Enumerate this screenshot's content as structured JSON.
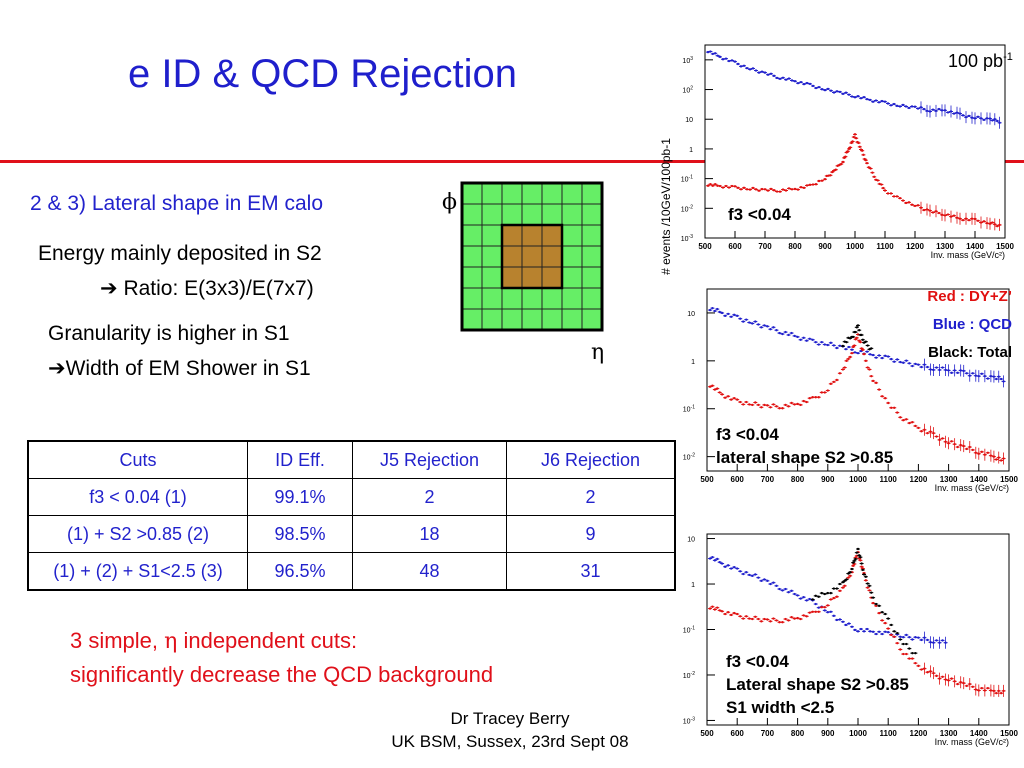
{
  "slide": {
    "title": "e ID & QCD Rejection",
    "section_heading": "2 & 3) Lateral shape in EM calo",
    "energy_line1": "Energy mainly deposited in S2",
    "energy_arrow": "➔",
    "energy_line2": "Ratio: E(3x3)/E(7x7)",
    "granularity_line1": "Granularity is higher in S1",
    "granularity_arrow": "➔",
    "granularity_line2": "Width of EM Shower in S1",
    "phi_symbol": "ϕ",
    "eta_symbol": "η",
    "conclusion_line1_a": "3 simple, ",
    "conclusion_line1_eta": "η",
    "conclusion_line1_b": " independent cuts:",
    "conclusion_line2": "significantly decrease the QCD background",
    "author_line1": "Dr Tracey Berry",
    "author_line2": "UK BSM, Sussex, 23rd Sept 08"
  },
  "calo_grid": {
    "size": 7,
    "highlight_start": 2,
    "highlight_size": 3,
    "cell_color": "#66ee66",
    "highlight_color": "#b8822e"
  },
  "table": {
    "headers": [
      "Cuts",
      "ID Eff.",
      "J5 Rejection",
      "J6 Rejection"
    ],
    "rows": [
      [
        "f3 < 0.04 (1)",
        "99.1%",
        "2",
        "2"
      ],
      [
        "(1) + S2 >0.85 (2)",
        "98.5%",
        "18",
        "9"
      ],
      [
        "(1) + (2) + S1<2.5 (3)",
        "96.5%",
        "48",
        "31"
      ]
    ]
  },
  "chart_data": [
    {
      "type": "scatter",
      "title": "",
      "lumi_label_base": "100 pb",
      "lumi_label_exp": "-1",
      "ylabel": "# events /10GeV/100pb-1",
      "xlabel": "Inv. mass (GeV/c²)",
      "xlim": [
        500,
        1500
      ],
      "ylim": [
        -3,
        3.5
      ],
      "log_y": true,
      "x_ticks": [
        "500",
        "600",
        "700",
        "800",
        "900",
        "1000",
        "1100",
        "1200",
        "1300",
        "1400",
        "1500"
      ],
      "y_ticks_base": "10",
      "y_ticks_exp": [
        "-3",
        "-2",
        "-1",
        "",
        "1",
        "2",
        "3"
      ],
      "annotation": [
        "f3 <0.04"
      ],
      "legend": [],
      "series": [
        {
          "color": "#2020cc",
          "x": [
            510,
            550,
            600,
            650,
            700,
            750,
            800,
            850,
            900,
            950,
            1000,
            1050,
            1100,
            1150,
            1200,
            1250,
            1300,
            1350,
            1400,
            1450,
            1490
          ],
          "y": [
            3.3,
            3.1,
            2.9,
            2.7,
            2.55,
            2.4,
            2.28,
            2.15,
            2.0,
            1.9,
            1.78,
            1.65,
            1.55,
            1.45,
            1.4,
            1.3,
            1.3,
            1.15,
            1.05,
            1.0,
            0.9
          ]
        },
        {
          "color": "#e01010",
          "x": [
            510,
            550,
            600,
            650,
            700,
            750,
            800,
            850,
            900,
            930,
            960,
            980,
            1000,
            1020,
            1040,
            1070,
            1100,
            1150,
            1200,
            1250,
            1300,
            1350,
            1400,
            1450,
            1490
          ],
          "y": [
            -1.2,
            -1.25,
            -1.3,
            -1.35,
            -1.38,
            -1.4,
            -1.35,
            -1.25,
            -1.0,
            -0.75,
            -0.4,
            0.0,
            0.45,
            0.0,
            -0.5,
            -1.0,
            -1.4,
            -1.7,
            -1.9,
            -2.1,
            -2.2,
            -2.35,
            -2.4,
            -2.5,
            -2.6
          ]
        }
      ]
    },
    {
      "type": "scatter",
      "title": "",
      "ylabel": "",
      "xlabel": "Inv. mass (GeV/c²)",
      "xlim": [
        500,
        1500
      ],
      "ylim": [
        -2.3,
        1.5
      ],
      "log_y": true,
      "x_ticks": [
        "500",
        "600",
        "700",
        "800",
        "900",
        "1000",
        "1100",
        "1200",
        "1300",
        "1400",
        "1500"
      ],
      "y_ticks_base": "10",
      "y_ticks_exp": [
        "-2",
        "-1",
        "",
        "1"
      ],
      "annotation": [
        "f3 <0.04",
        "lateral shape S2 >0.85"
      ],
      "legend": [
        {
          "label": "Red : DY+Z’",
          "color": "#e01010"
        },
        {
          "label": "Blue : QCD",
          "color": "#2020cc"
        },
        {
          "label": "Black: Total",
          "color": "#000000"
        }
      ],
      "series": [
        {
          "color": "#2020cc",
          "x": [
            510,
            550,
            600,
            650,
            700,
            750,
            800,
            850,
            900,
            950,
            1000,
            1050,
            1100,
            1150,
            1200,
            1250,
            1300,
            1350,
            1400,
            1450,
            1490
          ],
          "y": [
            1.1,
            1.0,
            0.9,
            0.8,
            0.7,
            0.6,
            0.5,
            0.4,
            0.35,
            0.28,
            0.2,
            0.12,
            0.05,
            -0.02,
            -0.1,
            -0.15,
            -0.2,
            -0.25,
            -0.3,
            -0.35,
            -0.4
          ]
        },
        {
          "color": "#e01010",
          "x": [
            510,
            550,
            600,
            650,
            700,
            750,
            800,
            850,
            900,
            950,
            980,
            1000,
            1020,
            1050,
            1100,
            1150,
            1200,
            1250,
            1300,
            1350,
            1400,
            1450,
            1490
          ],
          "y": [
            -0.5,
            -0.7,
            -0.85,
            -0.9,
            -0.95,
            -0.95,
            -0.9,
            -0.8,
            -0.6,
            -0.2,
            0.2,
            0.55,
            0.1,
            -0.4,
            -0.9,
            -1.2,
            -1.4,
            -1.55,
            -1.7,
            -1.8,
            -1.9,
            -2.0,
            -2.1
          ]
        },
        {
          "color": "#000000",
          "x": [
            950,
            980,
            1000,
            1020,
            1050
          ],
          "y": [
            0.35,
            0.5,
            0.7,
            0.4,
            0.2
          ]
        }
      ]
    },
    {
      "type": "scatter",
      "title": "",
      "ylabel": "",
      "xlabel": "Inv. mass (GeV/c²)",
      "xlim": [
        500,
        1500
      ],
      "ylim": [
        -3.1,
        1.1
      ],
      "log_y": true,
      "x_ticks": [
        "500",
        "600",
        "700",
        "800",
        "900",
        "1000",
        "1100",
        "1200",
        "1300",
        "1400",
        "1500"
      ],
      "y_ticks_base": "10",
      "y_ticks_exp": [
        "-3",
        "-2",
        "-1",
        "",
        "1"
      ],
      "annotation": [
        "f3 <0.04",
        "Lateral shape S2 >0.85",
        "S1 width <2.5"
      ],
      "legend": [],
      "series": [
        {
          "color": "#2020cc",
          "x": [
            510,
            550,
            600,
            650,
            700,
            750,
            800,
            850,
            900,
            950,
            1000,
            1050,
            1100,
            1150,
            1200,
            1250,
            1300
          ],
          "y": [
            0.6,
            0.45,
            0.3,
            0.2,
            0.05,
            -0.1,
            -0.25,
            -0.4,
            -0.6,
            -0.85,
            -1.0,
            -1.05,
            -1.1,
            -1.15,
            -1.2,
            -1.25,
            -1.3
          ]
        },
        {
          "color": "#e01010",
          "x": [
            510,
            550,
            600,
            650,
            700,
            750,
            800,
            850,
            900,
            950,
            980,
            1000,
            1020,
            1050,
            1100,
            1150,
            1200,
            1250,
            1300,
            1350,
            1400,
            1450,
            1490
          ],
          "y": [
            -0.5,
            -0.6,
            -0.7,
            -0.75,
            -0.8,
            -0.8,
            -0.75,
            -0.65,
            -0.45,
            -0.1,
            0.3,
            0.7,
            0.2,
            -0.4,
            -1.0,
            -1.5,
            -1.8,
            -2.0,
            -2.1,
            -2.2,
            -2.3,
            -2.35,
            -2.4
          ]
        },
        {
          "color": "#000000",
          "x": [
            850,
            900,
            950,
            980,
            1000,
            1020,
            1050,
            1100,
            1150,
            1200
          ],
          "y": [
            -0.3,
            -0.2,
            0.0,
            0.35,
            0.75,
            0.25,
            -0.3,
            -0.8,
            -1.3,
            -1.6
          ]
        }
      ]
    }
  ]
}
